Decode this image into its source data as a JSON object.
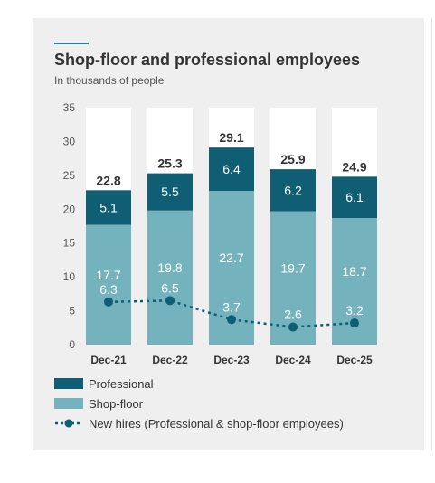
{
  "header": {
    "title": "Shop-floor and professional employees",
    "subtitle": "In thousands of people"
  },
  "legend": {
    "professional": "Professional",
    "shop_floor": "Shop-floor",
    "new_hires": "New hires (Professional & shop-floor employees)"
  },
  "colors": {
    "professional": "#0f5e74",
    "shop_floor": "#74b3be",
    "empty": "#ffffff",
    "new_hires": "#0f5e74",
    "background": "#efefef"
  },
  "chart_data": {
    "type": "bar",
    "stacked": true,
    "categories": [
      "Dec-21",
      "Dec-22",
      "Dec-23",
      "Dec-24",
      "Dec-25"
    ],
    "series": [
      {
        "name": "Shop-floor",
        "values": [
          17.7,
          19.8,
          22.7,
          19.7,
          18.7
        ]
      },
      {
        "name": "Professional",
        "values": [
          5.1,
          5.5,
          6.4,
          6.2,
          6.1
        ]
      }
    ],
    "totals": [
      22.8,
      25.3,
      29.1,
      25.9,
      24.9
    ],
    "line_series": {
      "name": "New hires (Professional & shop-floor employees)",
      "values": [
        6.3,
        6.5,
        3.7,
        2.6,
        3.2
      ]
    },
    "yticks": [
      0,
      5,
      10,
      15,
      20,
      25,
      30,
      35
    ],
    "ylim": [
      0,
      35
    ],
    "title": "Shop-floor and professional employees",
    "subtitle": "In thousands of people",
    "grid": false,
    "legend_position": "bottom"
  }
}
